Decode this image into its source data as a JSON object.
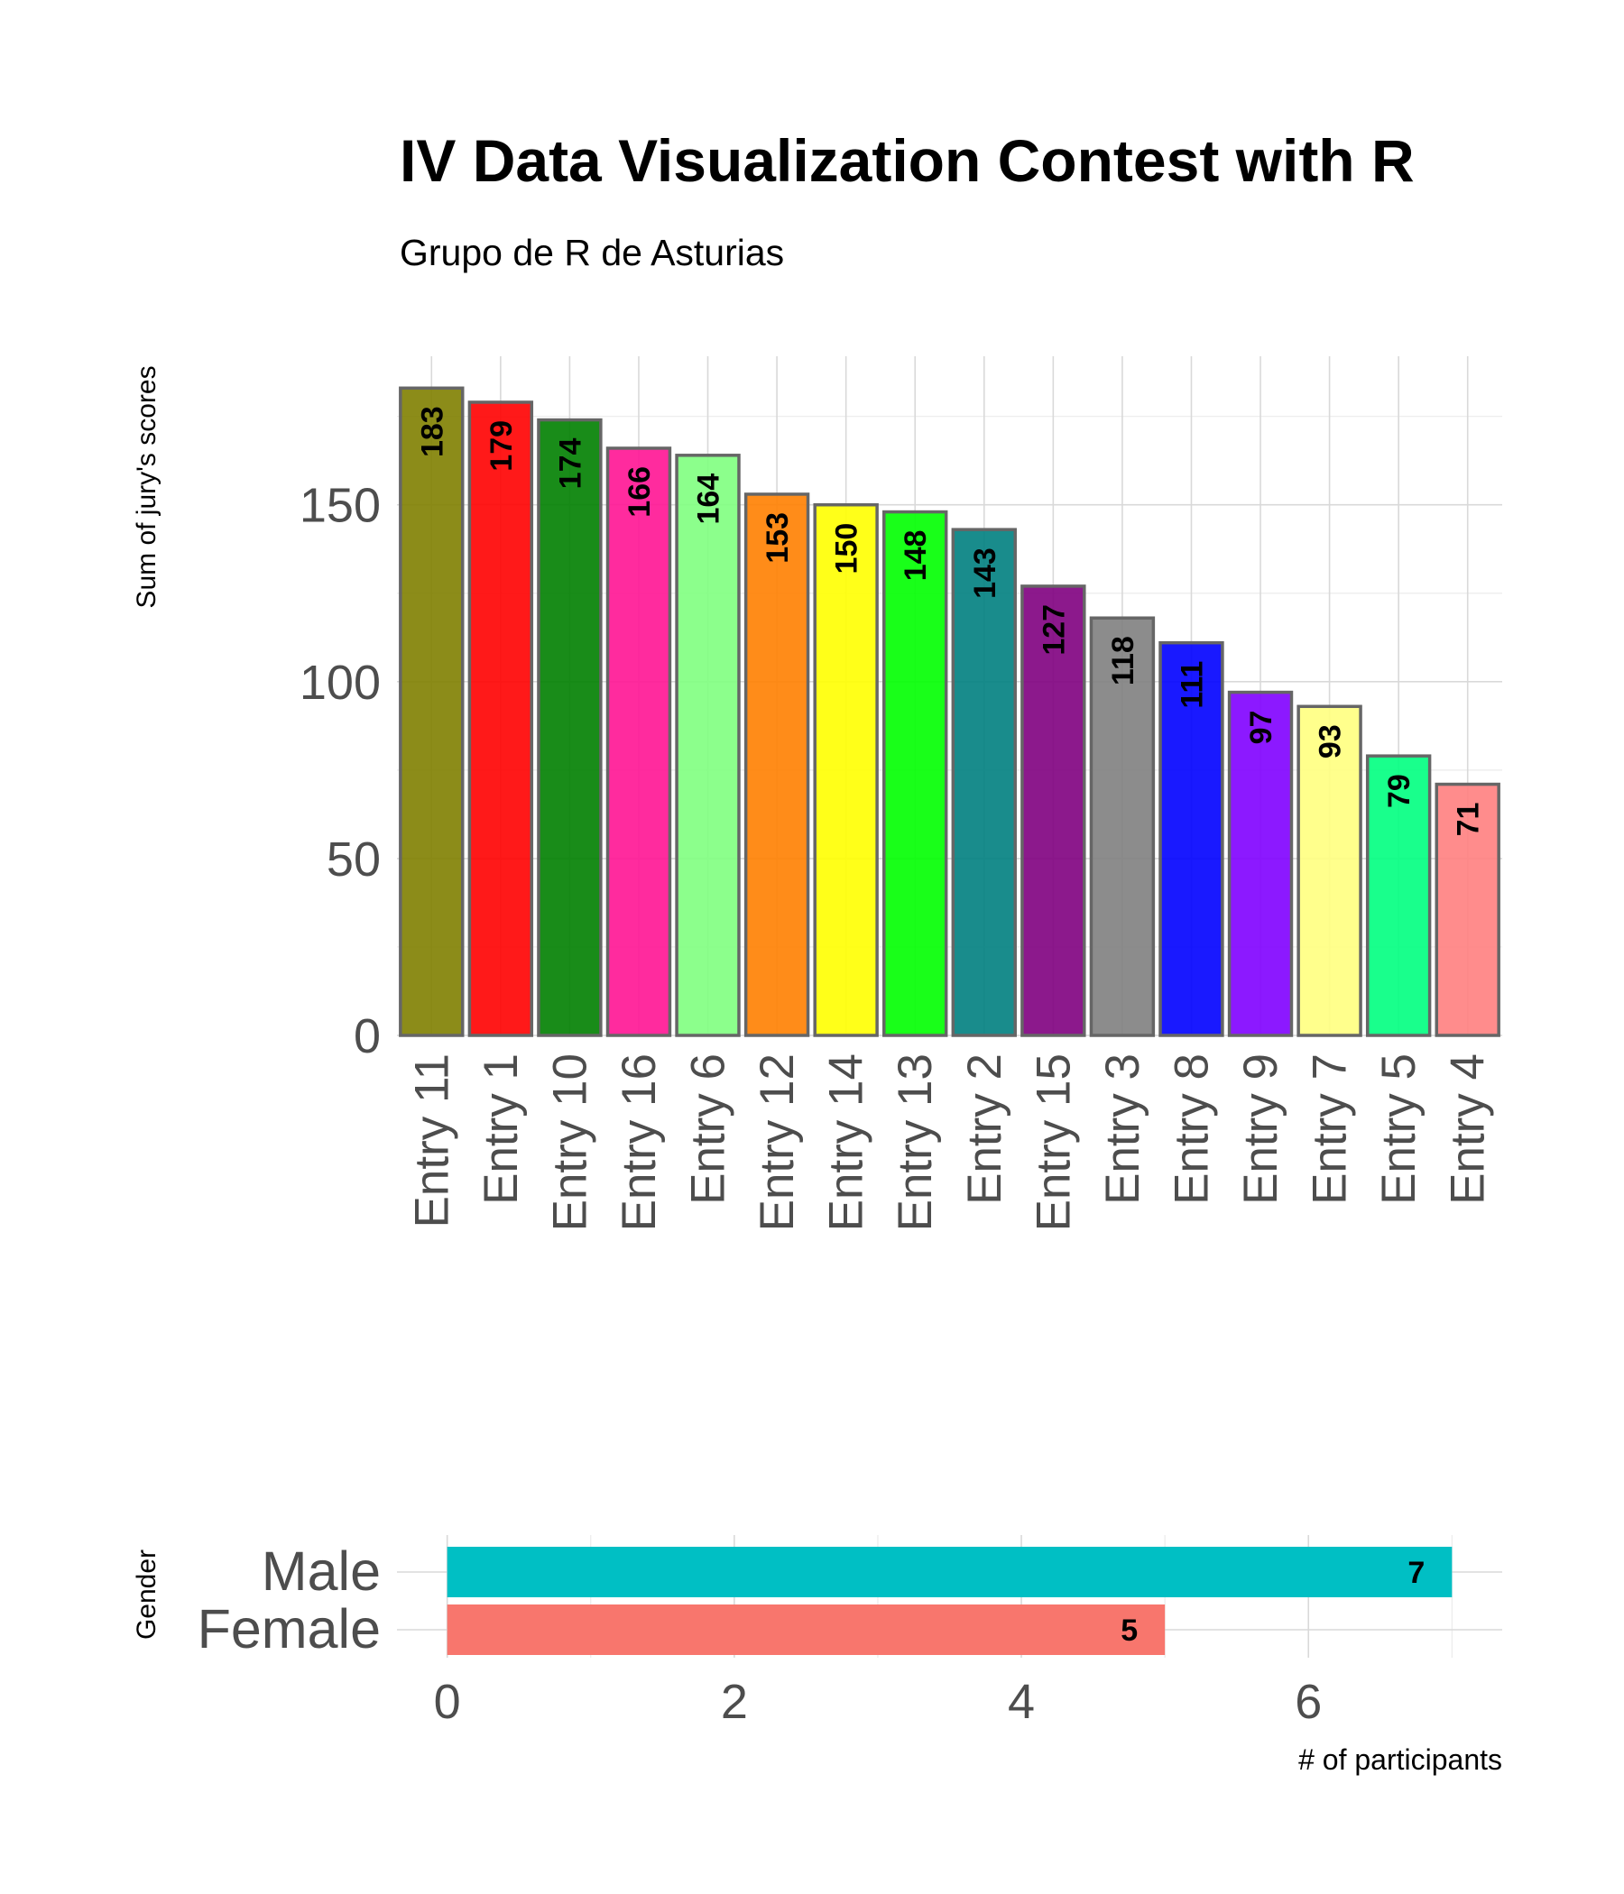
{
  "title": "IV Data Visualization Contest with R",
  "subtitle": "Grupo de R de Asturias",
  "chart_data": [
    {
      "type": "bar",
      "orientation": "vertical",
      "categories": [
        "Entry 11",
        "Entry 1",
        "Entry 10",
        "Entry 16",
        "Entry 6",
        "Entry 12",
        "Entry 14",
        "Entry 13",
        "Entry 2",
        "Entry 15",
        "Entry 3",
        "Entry 8",
        "Entry 9",
        "Entry 7",
        "Entry 5",
        "Entry 4"
      ],
      "values": [
        183,
        179,
        174,
        166,
        164,
        153,
        150,
        148,
        143,
        127,
        118,
        111,
        97,
        93,
        79,
        71
      ],
      "colors": [
        "#808000",
        "#ff0000",
        "#008000",
        "#ff1493",
        "#7fff7f",
        "#ff7f00",
        "#ffff00",
        "#00ff00",
        "#008080",
        "#800080",
        "#808080",
        "#0000ff",
        "#8000ff",
        "#ffff80",
        "#00ff80",
        "#ff8080"
      ],
      "xlabel": "",
      "ylabel": "Sum of jury's scores",
      "yticks": [
        0,
        50,
        100,
        150
      ],
      "ylim": [
        0,
        192
      ],
      "grid": true,
      "data_labels": true
    },
    {
      "type": "bar",
      "orientation": "horizontal",
      "categories": [
        "Female",
        "Male"
      ],
      "values": [
        5,
        7
      ],
      "colors": [
        "#f8766d",
        "#00bfc4"
      ],
      "xlabel": "# of participants",
      "ylabel": "Gender",
      "xticks": [
        0,
        2,
        4,
        6
      ],
      "xlim": [
        0,
        7.4
      ],
      "grid": true,
      "data_labels": true
    }
  ]
}
